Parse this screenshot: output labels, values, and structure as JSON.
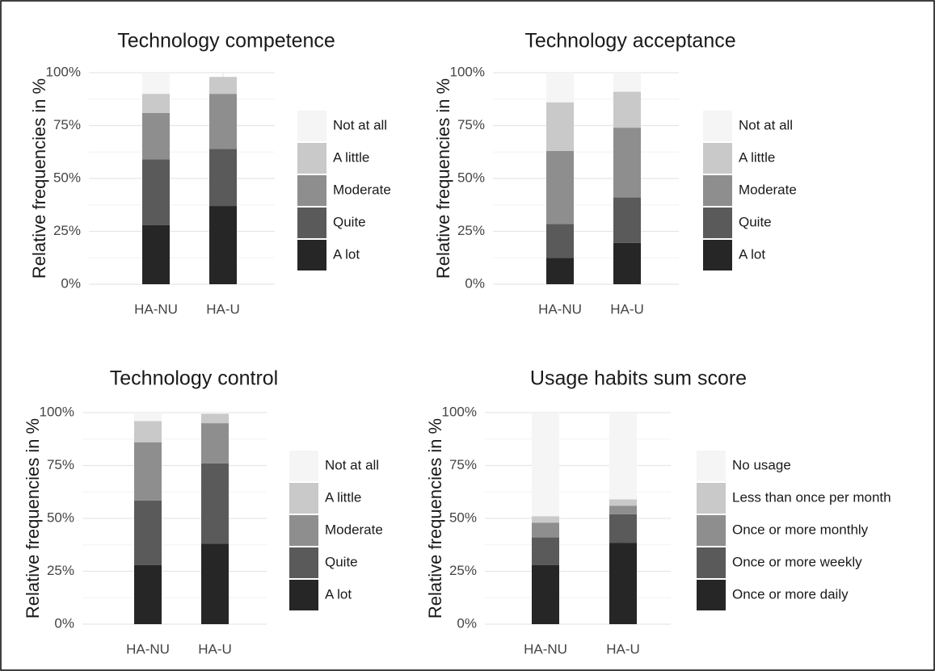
{
  "chart_data": [
    {
      "type": "bar",
      "stacked": true,
      "title": "Technology competence",
      "y_label": "Relative frequencies in %",
      "categories": [
        "HA-NU",
        "HA-U"
      ],
      "series": [
        {
          "name": "A lot",
          "color": "#262626",
          "values": [
            28,
            37
          ]
        },
        {
          "name": "Quite",
          "color": "#5a5a5a",
          "values": [
            31,
            27
          ]
        },
        {
          "name": "Moderate",
          "color": "#8e8e8e",
          "values": [
            22,
            26
          ]
        },
        {
          "name": "A little",
          "color": "#c9c9c9",
          "values": [
            9,
            8
          ]
        },
        {
          "name": "Not at all",
          "color": "#f5f5f5",
          "values": [
            10,
            0
          ]
        }
      ],
      "ylim": [
        0,
        100
      ],
      "yticks": [
        {
          "value": 0,
          "label": "0%"
        },
        {
          "value": 25,
          "label": "25%"
        },
        {
          "value": 50,
          "label": "50%"
        },
        {
          "value": 75,
          "label": "75%"
        },
        {
          "value": 100,
          "label": "100%"
        }
      ],
      "grid": true
    },
    {
      "type": "bar",
      "stacked": true,
      "title": "Technology acceptance",
      "y_label": "Relative frequencies in %",
      "categories": [
        "HA-NU",
        "HA-U"
      ],
      "series": [
        {
          "name": "A lot",
          "color": "#262626",
          "values": [
            12.5,
            19.5
          ]
        },
        {
          "name": "Quite",
          "color": "#5a5a5a",
          "values": [
            16,
            21.5
          ]
        },
        {
          "name": "Moderate",
          "color": "#8e8e8e",
          "values": [
            34.5,
            33
          ]
        },
        {
          "name": "A little",
          "color": "#c9c9c9",
          "values": [
            23,
            17
          ]
        },
        {
          "name": "Not at all",
          "color": "#f5f5f5",
          "values": [
            14,
            9
          ]
        }
      ],
      "ylim": [
        0,
        100
      ],
      "yticks": [
        {
          "value": 0,
          "label": "0%"
        },
        {
          "value": 25,
          "label": "25%"
        },
        {
          "value": 50,
          "label": "50%"
        },
        {
          "value": 75,
          "label": "75%"
        },
        {
          "value": 100,
          "label": "100%"
        }
      ],
      "grid": true
    },
    {
      "type": "bar",
      "stacked": true,
      "title": "Technology control",
      "y_label": "Relative frequencies in %",
      "categories": [
        "HA-NU",
        "HA-U"
      ],
      "series": [
        {
          "name": "A lot",
          "color": "#262626",
          "values": [
            28,
            38
          ]
        },
        {
          "name": "Quite",
          "color": "#5a5a5a",
          "values": [
            30.5,
            38
          ]
        },
        {
          "name": "Moderate",
          "color": "#8e8e8e",
          "values": [
            27.5,
            19
          ]
        },
        {
          "name": "A little",
          "color": "#c9c9c9",
          "values": [
            10,
            4.5
          ]
        },
        {
          "name": "Not at all",
          "color": "#f5f5f5",
          "values": [
            4,
            0.5
          ]
        }
      ],
      "ylim": [
        0,
        100
      ],
      "yticks": [
        {
          "value": 0,
          "label": "0%"
        },
        {
          "value": 25,
          "label": "25%"
        },
        {
          "value": 50,
          "label": "50%"
        },
        {
          "value": 75,
          "label": "75%"
        },
        {
          "value": 100,
          "label": "100%"
        }
      ],
      "grid": true
    },
    {
      "type": "bar",
      "stacked": true,
      "title": "Usage habits sum score",
      "y_label": "Relative frequencies in %",
      "categories": [
        "HA-NU",
        "HA-U"
      ],
      "series": [
        {
          "name": "Once or more daily",
          "color": "#262626",
          "values": [
            28,
            38.5
          ]
        },
        {
          "name": "Once or more weekly",
          "color": "#5a5a5a",
          "values": [
            13,
            13.5
          ]
        },
        {
          "name": "Once or more monthly",
          "color": "#8e8e8e",
          "values": [
            7,
            4
          ]
        },
        {
          "name": "Less than once per month",
          "color": "#c9c9c9",
          "values": [
            3,
            3
          ]
        },
        {
          "name": "No usage",
          "color": "#f5f5f5",
          "values": [
            49,
            41
          ]
        }
      ],
      "ylim": [
        0,
        100
      ],
      "yticks": [
        {
          "value": 0,
          "label": "0%"
        },
        {
          "value": 25,
          "label": "25%"
        },
        {
          "value": 50,
          "label": "50%"
        },
        {
          "value": 75,
          "label": "75%"
        },
        {
          "value": 100,
          "label": "100%"
        }
      ],
      "grid": true
    }
  ]
}
